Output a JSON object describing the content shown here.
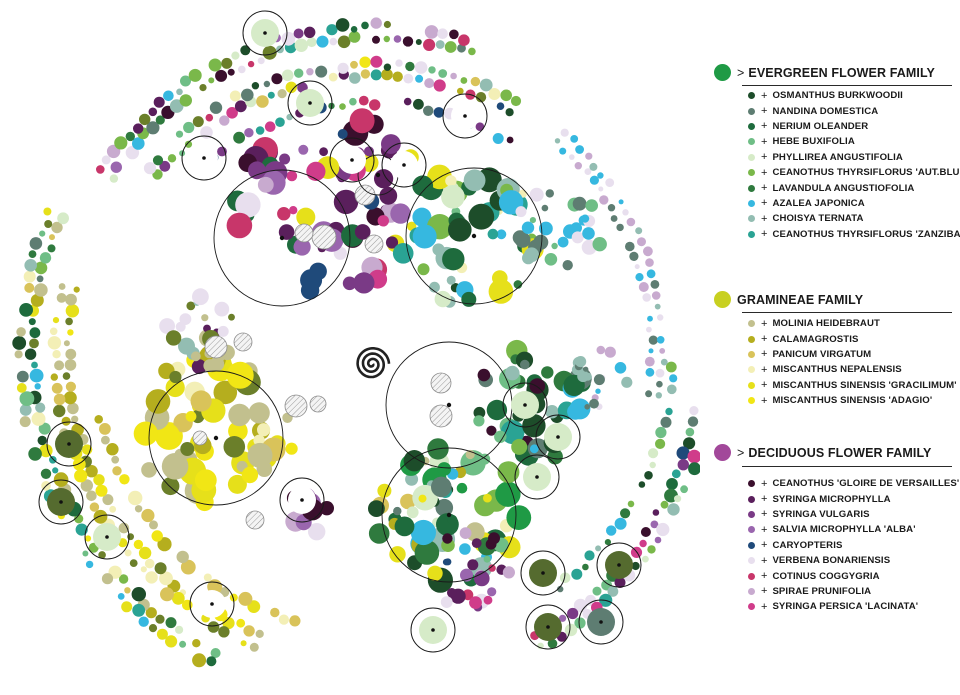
{
  "legend": {
    "groups": [
      {
        "id": "evergreen",
        "marker": ">",
        "title": "EVERGREEN FLOWER FAMILY",
        "color": "#1f9a45",
        "species": [
          {
            "name": "OSMANTHUS BURKWOODII",
            "color": "#1d4d2a"
          },
          {
            "name": "NANDINA DOMESTICA",
            "color": "#5e7d72"
          },
          {
            "name": "NERIUM OLEANDER",
            "color": "#1e6b3d"
          },
          {
            "name": "HEBE BUXIFOLIA",
            "color": "#6fbe86"
          },
          {
            "name": "PHYLLIREA ANGUSTIFOLIA",
            "color": "#d6ebc8"
          },
          {
            "name": "CEANOTHUS THYRSIFLORUS 'AUT.BLUE'",
            "color": "#7ab84a"
          },
          {
            "name": "LAVANDULA ANGUSTIOFOLIA",
            "color": "#2f7a3e"
          },
          {
            "name": "AZALEA JAPONICA",
            "color": "#36b8e0"
          },
          {
            "name": "CHOISYA TERNATA",
            "color": "#93bdb2"
          },
          {
            "name": "CEANOTHUS THYRSIFLORUS 'ZANZIBAR'",
            "color": "#2aa394"
          }
        ]
      },
      {
        "id": "gramineae",
        "marker": "",
        "title": "GRAMINEAE FAMILY",
        "color": "#c8d021",
        "species": [
          {
            "name": "MOLINIA HEIDEBRAUT",
            "color": "#c2c08e"
          },
          {
            "name": "CALAMAGROSTIS",
            "color": "#b5ae1e"
          },
          {
            "name": "PANICUM VIRGATUM",
            "color": "#d9c35a"
          },
          {
            "name": "MISCANTHUS NEPALENSIS",
            "color": "#f3efb6"
          },
          {
            "name": "MISCANTHUS SINENSIS 'GRACILIMUM'",
            "color": "#e6e01a"
          },
          {
            "name": "MISCANTHUS SINENSIS 'ADAGIO'",
            "color": "#f1e615"
          }
        ]
      },
      {
        "id": "deciduous",
        "marker": ">",
        "title": "DECIDUOUS FLOWER FAMILY",
        "color": "#a2489a",
        "species": [
          {
            "name": "CEANOTHUS 'GLOIRE DE VERSAILLES'",
            "color": "#3a0f2d"
          },
          {
            "name": "SYRINGA MICROPHYLLA",
            "color": "#5a1f5c"
          },
          {
            "name": "SYRINGA VULGARIS",
            "color": "#7a3a86"
          },
          {
            "name": "SALVIA MICROPHYLLA 'ALBA'",
            "color": "#9a66ae"
          },
          {
            "name": "CARYOPTERIS",
            "color": "#1f4a7a"
          },
          {
            "name": " VERBENA BONARIENSIS",
            "color": "#e8dfee"
          },
          {
            "name": "COTINUS COGGYGRIA",
            "color": "#c8366a"
          },
          {
            "name": "SPIRAE PRUNIFOLIA",
            "color": "#c8aacf"
          },
          {
            "name": "SYRINGA PERSICA 'LACINATA'",
            "color": "#d03c8a"
          }
        ]
      }
    ]
  },
  "plan": {
    "spiral_center_icon": "spiral-icon",
    "big_ring_count": 6,
    "tree_marker_count": 17
  }
}
